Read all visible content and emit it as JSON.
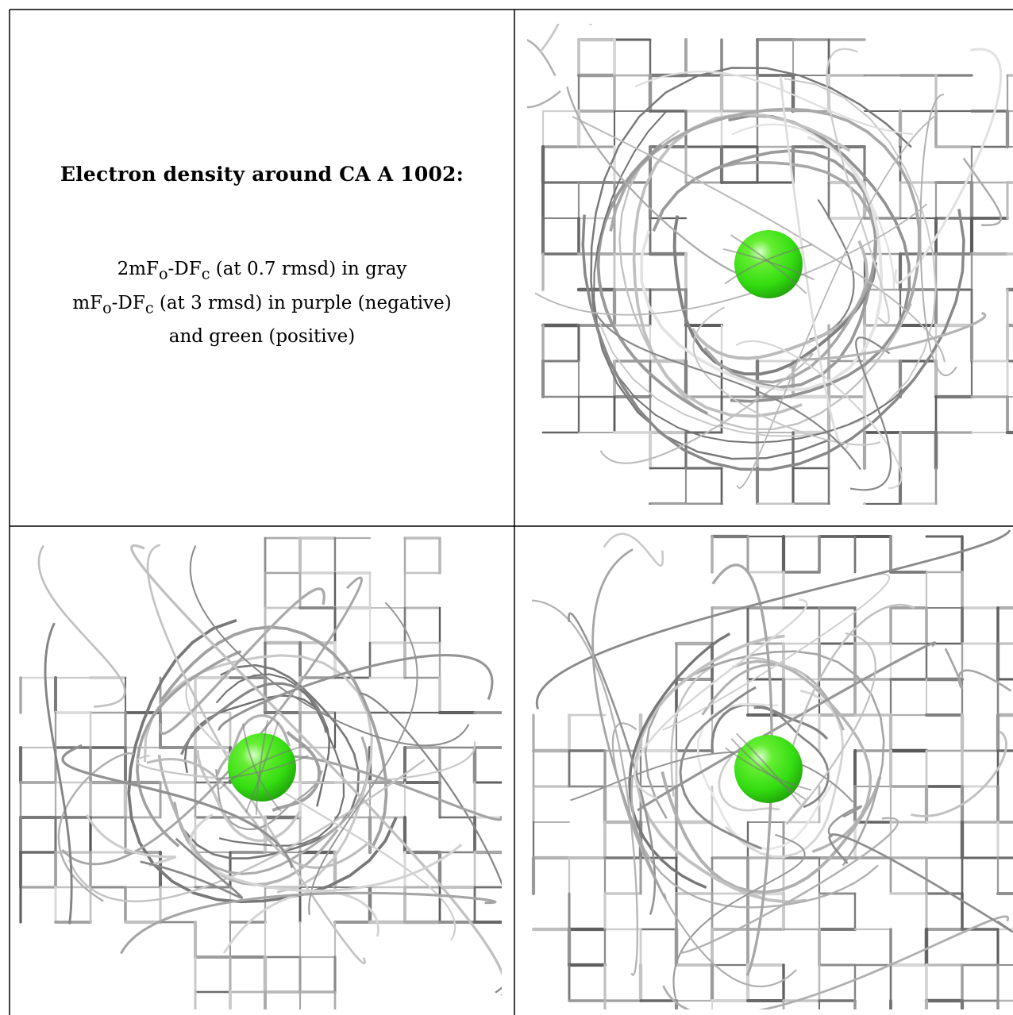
{
  "legend": {
    "heading": "Electron density around CA A 1002:",
    "line1": {
      "pre": "2mF",
      "sub1": "o",
      "mid": "-DF",
      "sub2": "c",
      "post": " (at 0.7 rmsd) in gray"
    },
    "line2": {
      "pre": "mF",
      "sub1": "o",
      "mid": "-DF",
      "sub2": "c",
      "post": " (at 3 rmsd) in purple (negative)"
    },
    "line3": "and green (positive)"
  },
  "colors": {
    "mesh_gray": "#8a8a8a",
    "ion_green": "#33dd11",
    "frame": "#000000"
  },
  "panels": [
    {
      "view": "top-right",
      "ion_label": "CA A 1002"
    },
    {
      "view": "bottom-left",
      "ion_label": "CA A 1002"
    },
    {
      "view": "bottom-right",
      "ion_label": "CA A 1002"
    }
  ]
}
